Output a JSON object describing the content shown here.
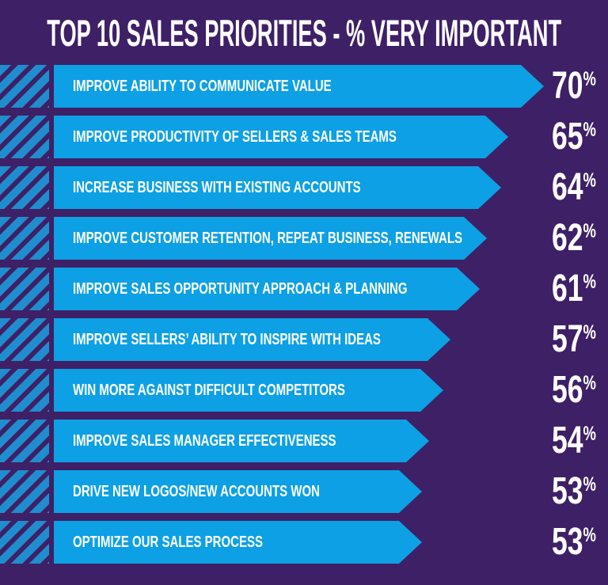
{
  "colors": {
    "background": "#3E2066",
    "bar": "#0DA0E4",
    "hatch_stripe": "#1F8DCE",
    "text": "#FFFFFF"
  },
  "chart_data": {
    "type": "bar",
    "orientation": "horizontal",
    "title": "TOP 10 SALES PRIORITIES - % VERY IMPORTANT",
    "value_suffix": "%",
    "xlim": [
      0,
      75
    ],
    "grid": false,
    "legend": "none",
    "categories": [
      "IMPROVE ABILITY TO COMMUNICATE VALUE",
      "IMPROVE PRODUCTIVITY OF SELLERS & SALES TEAMS",
      "INCREASE BUSINESS WITH EXISTING ACCOUNTS",
      "IMPROVE CUSTOMER RETENTION, REPEAT BUSINESS, RENEWALS",
      "IMPROVE SALES OPPORTUNITY APPROACH & PLANNING",
      "IMPROVE SELLERS’ ABILITY TO INSPIRE WITH IDEAS",
      "WIN MORE AGAINST DIFFICULT COMPETITORS",
      "IMPROVE SALES MANAGER EFFECTIVENESS",
      "DRIVE NEW LOGOS/NEW ACCOUNTS WON",
      "OPTIMIZE OUR SALES PROCESS"
    ],
    "values": [
      70,
      65,
      64,
      62,
      61,
      57,
      56,
      54,
      53,
      53
    ]
  }
}
